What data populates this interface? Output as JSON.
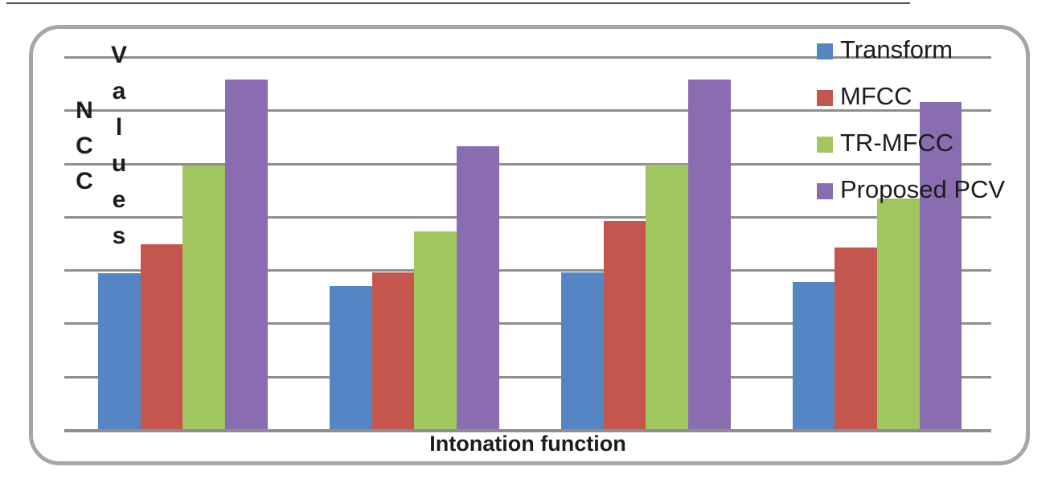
{
  "figure": {
    "kind": "clustered-bar-chart-figure",
    "background": "#ffffff",
    "frame_color": "#a6a6a6",
    "gridline_color": "#8e8e8e",
    "text_color": "#1c1c1c"
  },
  "chart_data": {
    "type": "bar",
    "title": "",
    "xlabel": "Intonation function",
    "ylabel": "NCC Values",
    "ylabel_words": [
      "NCC",
      "Values"
    ],
    "categories": [
      "",
      "",
      "",
      ""
    ],
    "series": [
      {
        "name": "Transform",
        "color": "#5586C3",
        "values": [
          2.94,
          2.7,
          2.95,
          2.77
        ]
      },
      {
        "name": "MFCC",
        "color": "#C5564E",
        "values": [
          3.48,
          2.95,
          3.92,
          3.42
        ]
      },
      {
        "name": "TR-MFCC",
        "color": "#A2C65F",
        "values": [
          4.96,
          3.72,
          4.98,
          4.34
        ]
      },
      {
        "name": "Proposed PCV",
        "color": "#8A6DB0",
        "values": [
          6.58,
          5.32,
          6.58,
          6.16
        ]
      }
    ],
    "ylim": [
      0,
      7
    ],
    "y_axis_tick_labels": "none (unlabeled axis, values in gridline units)",
    "gridlines": {
      "horizontal": true,
      "count": 8,
      "interval": 1
    },
    "legend_position": "top-right"
  }
}
